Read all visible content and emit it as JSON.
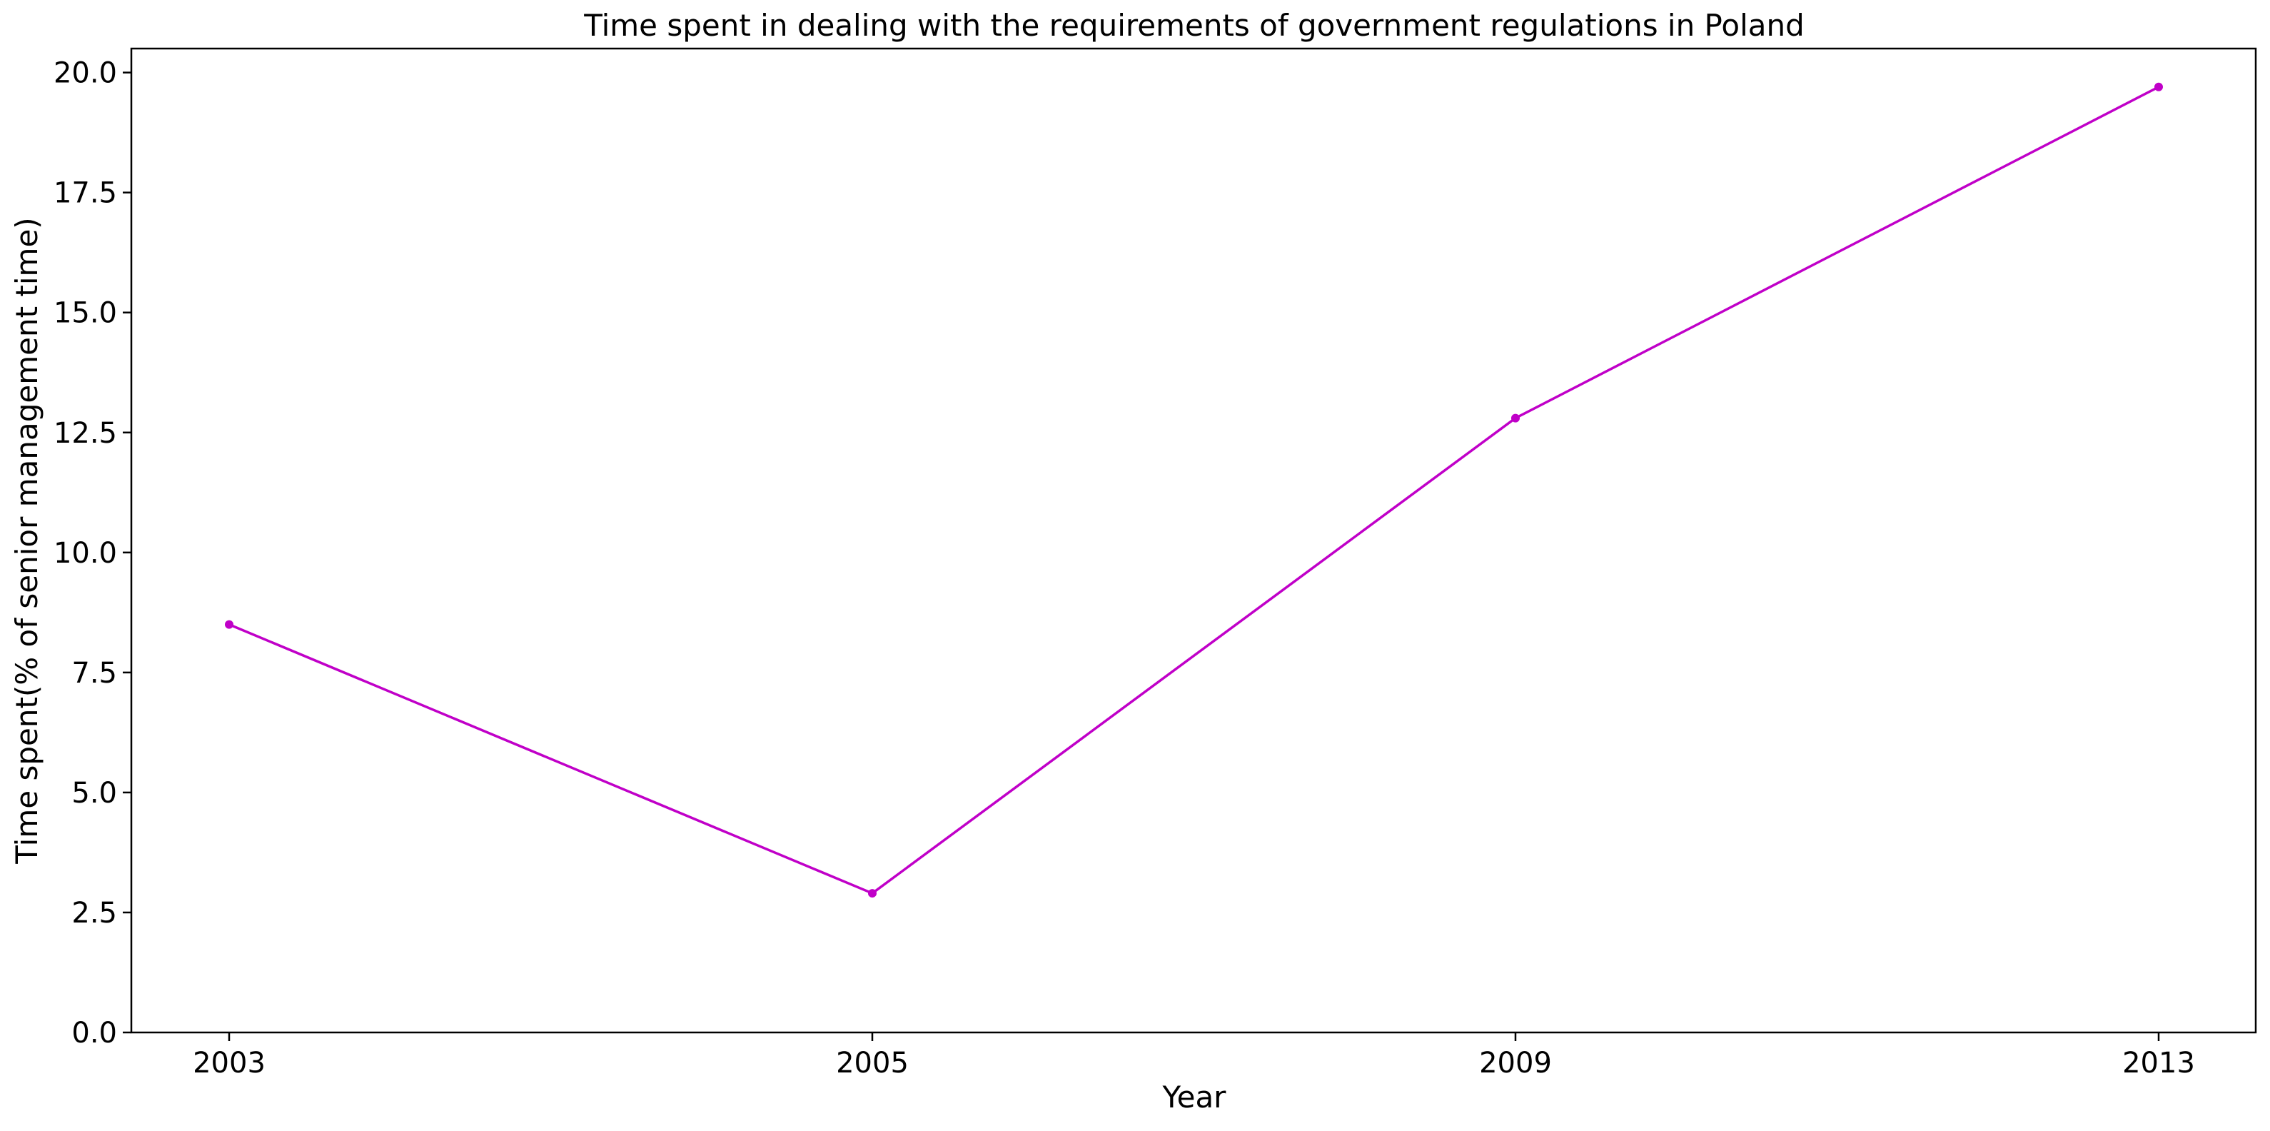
{
  "chart_data": {
    "type": "line",
    "title": "Time spent in dealing with the requirements of government regulations in Poland",
    "xlabel": "Year",
    "ylabel": "Time spent(% of senior management time)",
    "categories": [
      "2003",
      "2005",
      "2009",
      "2013"
    ],
    "series": [
      {
        "values": [
          8.5,
          2.9,
          12.8,
          19.7
        ],
        "color": "#c000c8",
        "marker": "circle"
      }
    ],
    "ylim": [
      0,
      20.5
    ],
    "yticks": [
      "0.0",
      "2.5",
      "5.0",
      "7.5",
      "10.0",
      "12.5",
      "15.0",
      "17.5",
      "20.0"
    ],
    "grid": false,
    "legend": "none"
  }
}
